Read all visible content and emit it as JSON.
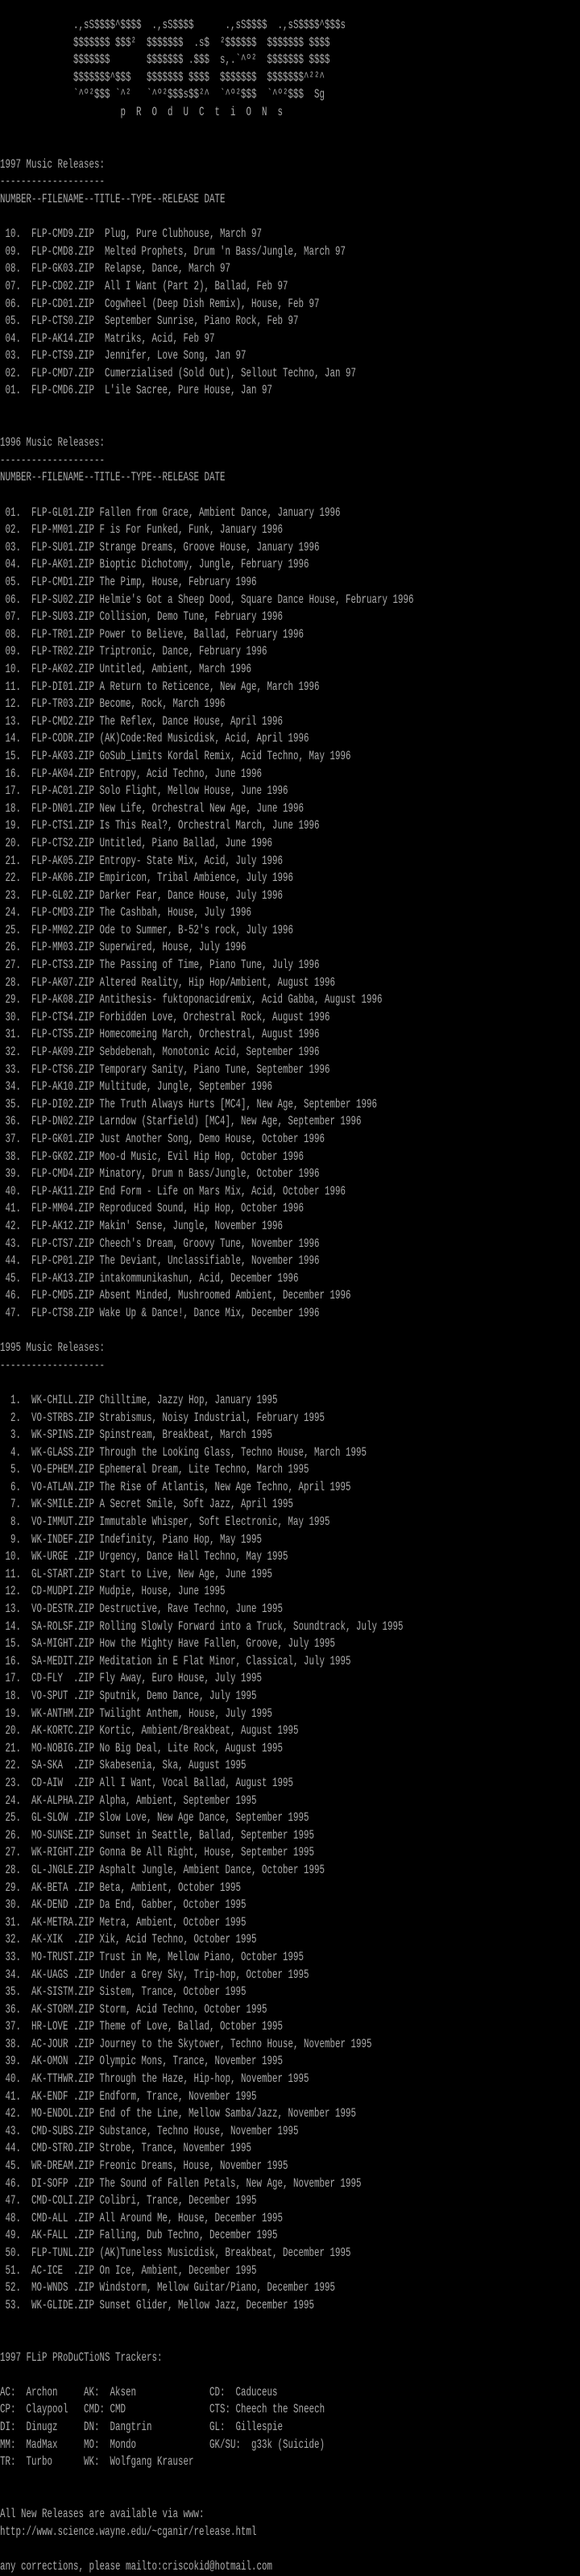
{
  "colors": {
    "background": "#000000",
    "text": "#aaaaaa"
  },
  "logo": {
    "art": [
      "              .,sS$$$$^$$$$  .,sS$$$$      .,sS$$$$  .,sS$$$$^$$$s",
      "              $$$$$$$ $$$²  $$$$$$$  .s$  ²$$$$$$  $$$$$$$ $$$$",
      "              $$$$$$$       $$$$$$$ .$$$  s,.`^º²  $$$$$$$ $$$$",
      "              $$$$$$$^$$$   $$$$$$$ $$$$  $$$$$$$  $$$$$$$^²²^",
      "              `^º²$$$ `^²   `^º²$$$s$$²^  `^º²$$$  `^º²$$$  Sg"
    ],
    "tagline": "                       p  R  O  d  U  C  t  i  O  N  s"
  },
  "sections": [
    {
      "title": "1997 Music Releases:",
      "rule": "--------------------",
      "header": "NUMBER--FILENAME--TITLE--TYPE--RELEASE DATE",
      "gap": 2,
      "entries": [
        {
          "number": "10",
          "filename": "FLP-CMD9.ZIP",
          "description": "Plug, Pure Clubhouse, March 97"
        },
        {
          "number": "09",
          "filename": "FLP-CMD8.ZIP",
          "description": "Melted Prophets, Drum 'n Bass/Jungle, March 97"
        },
        {
          "number": "08",
          "filename": "FLP-GK03.ZIP",
          "description": "Relapse, Dance, March 97"
        },
        {
          "number": "07",
          "filename": "FLP-CD02.ZIP",
          "description": "All I Want (Part 2), Ballad, Feb 97"
        },
        {
          "number": "06",
          "filename": "FLP-CD01.ZIP",
          "description": "Cogwheel (Deep Dish Remix), House, Feb 97"
        },
        {
          "number": "05",
          "filename": "FLP-CTS0.ZIP",
          "description": "September Sunrise, Piano Rock, Feb 97"
        },
        {
          "number": "04",
          "filename": "FLP-AK14.ZIP",
          "description": "Matriks, Acid, Feb 97"
        },
        {
          "number": "03",
          "filename": "FLP-CTS9.ZIP",
          "description": "Jennifer, Love Song, Jan 97"
        },
        {
          "number": "02",
          "filename": "FLP-CMD7.ZIP",
          "description": "Cumerzialised (Sold Out), Sellout Techno, Jan 97"
        },
        {
          "number": "01",
          "filename": "FLP-CMD6.ZIP",
          "description": "L'ile Sacree, Pure House, Jan 97"
        }
      ]
    },
    {
      "title": "1996 Music Releases:",
      "rule": "--------------------",
      "header": "NUMBER--FILENAME--TITLE--TYPE--RELEASE DATE",
      "gap": 1,
      "entries": [
        {
          "number": "01",
          "filename": "FLP-GL01.ZIP",
          "description": "Fallen from Grace, Ambient Dance, January 1996"
        },
        {
          "number": "02",
          "filename": "FLP-MM01.ZIP",
          "description": "F is For Funked, Funk, January 1996"
        },
        {
          "number": "03",
          "filename": "FLP-SU01.ZIP",
          "description": "Strange Dreams, Groove House, January 1996"
        },
        {
          "number": "04",
          "filename": "FLP-AK01.ZIP",
          "description": "Bioptic Dichotomy, Jungle, February 1996"
        },
        {
          "number": "05",
          "filename": "FLP-CMD1.ZIP",
          "description": "The Pimp, House, February 1996"
        },
        {
          "number": "06",
          "filename": "FLP-SU02.ZIP",
          "description": "Helmie's Got a Sheep Dood, Square Dance House, February 1996"
        },
        {
          "number": "07",
          "filename": "FLP-SU03.ZIP",
          "description": "Collision, Demo Tune, February 1996"
        },
        {
          "number": "08",
          "filename": "FLP-TR01.ZIP",
          "description": "Power to Believe, Ballad, February 1996"
        },
        {
          "number": "09",
          "filename": "FLP-TR02.ZIP",
          "description": "Triptronic, Dance, February 1996"
        },
        {
          "number": "10",
          "filename": "FLP-AK02.ZIP",
          "description": "Untitled, Ambient, March 1996"
        },
        {
          "number": "11",
          "filename": "FLP-DI01.ZIP",
          "description": "A Return to Reticence, New Age, March 1996"
        },
        {
          "number": "12",
          "filename": "FLP-TR03.ZIP",
          "description": "Become, Rock, March 1996"
        },
        {
          "number": "13",
          "filename": "FLP-CMD2.ZIP",
          "description": "The Reflex, Dance House, April 1996"
        },
        {
          "number": "14",
          "filename": "FLP-CODR.ZIP",
          "description": "(AK)Code:Red Musicdisk, Acid, April 1996"
        },
        {
          "number": "15",
          "filename": "FLP-AK03.ZIP",
          "description": "GoSub_Limits Kordal Remix, Acid Techno, May 1996"
        },
        {
          "number": "16",
          "filename": "FLP-AK04.ZIP",
          "description": "Entropy, Acid Techno, June 1996"
        },
        {
          "number": "17",
          "filename": "FLP-AC01.ZIP",
          "description": "Solo Flight, Mellow House, June 1996"
        },
        {
          "number": "18",
          "filename": "FLP-DN01.ZIP",
          "description": "New Life, Orchestral New Age, June 1996"
        },
        {
          "number": "19",
          "filename": "FLP-CTS1.ZIP",
          "description": "Is This Real?, Orchestral March, June 1996"
        },
        {
          "number": "20",
          "filename": "FLP-CTS2.ZIP",
          "description": "Untitled, Piano Ballad, June 1996"
        },
        {
          "number": "21",
          "filename": "FLP-AK05.ZIP",
          "description": "Entropy- State Mix, Acid, July 1996"
        },
        {
          "number": "22",
          "filename": "FLP-AK06.ZIP",
          "description": "Empiricon, Tribal Ambience, July 1996"
        },
        {
          "number": "23",
          "filename": "FLP-GL02.ZIP",
          "description": "Darker Fear, Dance House, July 1996"
        },
        {
          "number": "24",
          "filename": "FLP-CMD3.ZIP",
          "description": "The Cashbah, House, July 1996"
        },
        {
          "number": "25",
          "filename": "FLP-MM02.ZIP",
          "description": "Ode to Summer, B-52's rock, July 1996"
        },
        {
          "number": "26",
          "filename": "FLP-MM03.ZIP",
          "description": "Superwired, House, July 1996"
        },
        {
          "number": "27",
          "filename": "FLP-CTS3.ZIP",
          "description": "The Passing of Time, Piano Tune, July 1996"
        },
        {
          "number": "28",
          "filename": "FLP-AK07.ZIP",
          "description": "Altered Reality, Hip Hop/Ambient, August 1996"
        },
        {
          "number": "29",
          "filename": "FLP-AK08.ZIP",
          "description": "Antithesis- fuktoponacidremix, Acid Gabba, August 1996"
        },
        {
          "number": "30",
          "filename": "FLP-CTS4.ZIP",
          "description": "Forbidden Love, Orchestral Rock, August 1996"
        },
        {
          "number": "31",
          "filename": "FLP-CTS5.ZIP",
          "description": "Homecomeing March, Orchestral, August 1996"
        },
        {
          "number": "32",
          "filename": "FLP-AK09.ZIP",
          "description": "Sebdebenah, Monotonic Acid, September 1996"
        },
        {
          "number": "33",
          "filename": "FLP-CTS6.ZIP",
          "description": "Temporary Sanity, Piano Tune, September 1996"
        },
        {
          "number": "34",
          "filename": "FLP-AK10.ZIP",
          "description": "Multitude, Jungle, September 1996"
        },
        {
          "number": "35",
          "filename": "FLP-DI02.ZIP",
          "description": "The Truth Always Hurts [MC4], New Age, September 1996"
        },
        {
          "number": "36",
          "filename": "FLP-DN02.ZIP",
          "description": "Larndow (Starfield) [MC4], New Age, September 1996"
        },
        {
          "number": "37",
          "filename": "FLP-GK01.ZIP",
          "description": "Just Another Song, Demo House, October 1996"
        },
        {
          "number": "38",
          "filename": "FLP-GK02.ZIP",
          "description": "Moo-d Music, Evil Hip Hop, October 1996"
        },
        {
          "number": "39",
          "filename": "FLP-CMD4.ZIP",
          "description": "Minatory, Drum n Bass/Jungle, October 1996"
        },
        {
          "number": "40",
          "filename": "FLP-AK11.ZIP",
          "description": "End Form - Life on Mars Mix, Acid, October 1996"
        },
        {
          "number": "41",
          "filename": "FLP-MM04.ZIP",
          "description": "Reproduced Sound, Hip Hop, October 1996"
        },
        {
          "number": "42",
          "filename": "FLP-AK12.ZIP",
          "description": "Makin' Sense, Jungle, November 1996"
        },
        {
          "number": "43",
          "filename": "FLP-CTS7.ZIP",
          "description": "Cheech's Dream, Groovy Tune, November 1996"
        },
        {
          "number": "44",
          "filename": "FLP-CP01.ZIP",
          "description": "The Deviant, Unclassifiable, November 1996"
        },
        {
          "number": "45",
          "filename": "FLP-AK13.ZIP",
          "description": "intakommunikashun, Acid, December 1996"
        },
        {
          "number": "46",
          "filename": "FLP-CMD5.ZIP",
          "description": "Absent Minded, Mushroomed Ambient, December 1996"
        },
        {
          "number": "47",
          "filename": "FLP-CTS8.ZIP",
          "description": "Wake Up & Dance!, Dance Mix, December 1996"
        }
      ]
    },
    {
      "title": "1995 Music Releases:",
      "rule": "--------------------",
      "gap": 1,
      "entries": [
        {
          "number": "1",
          "filename": "WK-CHILL.ZIP",
          "description": "Chilltime, Jazzy Hop, January 1995"
        },
        {
          "number": "2",
          "filename": "VO-STRBS.ZIP",
          "description": "Strabismus, Noisy Industrial, February 1995"
        },
        {
          "number": "3",
          "filename": "WK-SPINS.ZIP",
          "description": "Spinstream, Breakbeat, March 1995"
        },
        {
          "number": "4",
          "filename": "WK-GLASS.ZIP",
          "description": "Through the Looking Glass, Techno House, March 1995"
        },
        {
          "number": "5",
          "filename": "VO-EPHEM.ZIP",
          "description": "Ephemeral Dream, Lite Techno, March 1995"
        },
        {
          "number": "6",
          "filename": "VO-ATLAN.ZIP",
          "description": "The Rise of Atlantis, New Age Techno, April 1995"
        },
        {
          "number": "7",
          "filename": "WK-SMILE.ZIP",
          "description": "A Secret Smile, Soft Jazz, April 1995"
        },
        {
          "number": "8",
          "filename": "VO-IMMUT.ZIP",
          "description": "Immutable Whisper, Soft Electronic, May 1995"
        },
        {
          "number": "9",
          "filename": "WK-INDEF.ZIP",
          "description": "Indefinity, Piano Hop, May 1995"
        },
        {
          "number": "10",
          "filename": "WK-URGE .ZIP",
          "description": "Urgency, Dance Hall Techno, May 1995"
        },
        {
          "number": "11",
          "filename": "GL-START.ZIP",
          "description": "Start to Live, New Age, June 1995"
        },
        {
          "number": "12",
          "filename": "CD-MUDPI.ZIP",
          "description": "Mudpie, House, June 1995"
        },
        {
          "number": "13",
          "filename": "VO-DESTR.ZIP",
          "description": "Destructive, Rave Techno, June 1995"
        },
        {
          "number": "14",
          "filename": "SA-ROLSF.ZIP",
          "description": "Rolling Slowly Forward into a Truck, Soundtrack, July 1995"
        },
        {
          "number": "15",
          "filename": "SA-MIGHT.ZIP",
          "description": "How the Mighty Have Fallen, Groove, July 1995"
        },
        {
          "number": "16",
          "filename": "SA-MEDIT.ZIP",
          "description": "Meditation in E Flat Minor, Classical, July 1995"
        },
        {
          "number": "17",
          "filename": "CD-FLY  .ZIP",
          "description": "Fly Away, Euro House, July 1995"
        },
        {
          "number": "18",
          "filename": "VO-SPUT .ZIP",
          "description": "Sputnik, Demo Dance, July 1995"
        },
        {
          "number": "19",
          "filename": "WK-ANTHM.ZIP",
          "description": "Twilight Anthem, House, July 1995"
        },
        {
          "number": "20",
          "filename": "AK-KORTC.ZIP",
          "description": "Kortic, Ambient/Breakbeat, August 1995"
        },
        {
          "number": "21",
          "filename": "MO-NOBIG.ZIP",
          "description": "No Big Deal, Lite Rock, August 1995"
        },
        {
          "number": "22",
          "filename": "SA-SKA  .ZIP",
          "description": "Skabesenia, Ska, August 1995"
        },
        {
          "number": "23",
          "filename": "CD-AIW  .ZIP",
          "description": "All I Want, Vocal Ballad, August 1995"
        },
        {
          "number": "24",
          "filename": "AK-ALPHA.ZIP",
          "description": "Alpha, Ambient, September 1995"
        },
        {
          "number": "25",
          "filename": "GL-SLOW .ZIP",
          "description": "Slow Love, New Age Dance, September 1995"
        },
        {
          "number": "26",
          "filename": "MO-SUNSE.ZIP",
          "description": "Sunset in Seattle, Ballad, September 1995"
        },
        {
          "number": "27",
          "filename": "WK-RIGHT.ZIP",
          "description": "Gonna Be All Right, House, September 1995"
        },
        {
          "number": "28",
          "filename": "GL-JNGLE.ZIP",
          "description": "Asphalt Jungle, Ambient Dance, October 1995"
        },
        {
          "number": "29",
          "filename": "AK-BETA .ZIP",
          "description": "Beta, Ambient, October 1995"
        },
        {
          "number": "30",
          "filename": "AK-DEND .ZIP",
          "description": "Da End, Gabber, October 1995"
        },
        {
          "number": "31",
          "filename": "AK-METRA.ZIP",
          "description": "Metra, Ambient, October 1995"
        },
        {
          "number": "32",
          "filename": "AK-XIK  .ZIP",
          "description": "Xik, Acid Techno, October 1995"
        },
        {
          "number": "33",
          "filename": "MO-TRUST.ZIP",
          "description": "Trust in Me, Mellow Piano, October 1995"
        },
        {
          "number": "34",
          "filename": "AK-UAGS .ZIP",
          "description": "Under a Grey Sky, Trip-hop, October 1995"
        },
        {
          "number": "35",
          "filename": "AK-SISTM.ZIP",
          "description": "Sistem, Trance, October 1995"
        },
        {
          "number": "36",
          "filename": "AK-STORM.ZIP",
          "description": "Storm, Acid Techno, October 1995"
        },
        {
          "number": "37",
          "filename": "HR-LOVE .ZIP",
          "description": "Theme of Love, Ballad, October 1995"
        },
        {
          "number": "38",
          "filename": "AC-JOUR .ZIP",
          "description": "Journey to the Skytower, Techno House, November 1995"
        },
        {
          "number": "39",
          "filename": "AK-OMON .ZIP",
          "description": "Olympic Mons, Trance, November 1995"
        },
        {
          "number": "40",
          "filename": "AK-TTHWR.ZIP",
          "description": "Through the Haze, Hip-hop, November 1995"
        },
        {
          "number": "41",
          "filename": "AK-ENDF .ZIP",
          "description": "Endform, Trance, November 1995"
        },
        {
          "number": "42",
          "filename": "MO-ENDOL.ZIP",
          "description": "End of the Line, Mellow Samba/Jazz, November 1995"
        },
        {
          "number": "43",
          "filename": "CMD-SUBS.ZIP",
          "description": "Substance, Techno House, November 1995"
        },
        {
          "number": "44",
          "filename": "CMD-STRO.ZIP",
          "description": "Strobe, Trance, November 1995"
        },
        {
          "number": "45",
          "filename": "WR-DREAM.ZIP",
          "description": "Freonic Dreams, House, November 1995"
        },
        {
          "number": "46",
          "filename": "DI-SOFP .ZIP",
          "description": "The Sound of Fallen Petals, New Age, November 1995"
        },
        {
          "number": "47",
          "filename": "CMD-COLI.ZIP",
          "description": "Colibri, Trance, December 1995"
        },
        {
          "number": "48",
          "filename": "CMD-ALL .ZIP",
          "description": "All Around Me, House, December 1995"
        },
        {
          "number": "49",
          "filename": "AK-FALL .ZIP",
          "description": "Falling, Dub Techno, December 1995"
        },
        {
          "number": "50",
          "filename": "FLP-TUNL.ZIP",
          "description": "(AK)Tuneless Musicdisk, Breakbeat, December 1995"
        },
        {
          "number": "51",
          "filename": "AC-ICE  .ZIP",
          "description": "On Ice, Ambient, December 1995"
        },
        {
          "number": "52",
          "filename": "MO-WNDS .ZIP",
          "description": "Windstorm, Mellow Guitar/Piano, December 1995"
        },
        {
          "number": "53",
          "filename": "WK-GLIDE.ZIP",
          "description": "Sunset Glider, Mellow Jazz, December 1995"
        }
      ]
    }
  ],
  "trackers": {
    "title": "1997 FLiP PRoDuCTioNS Trackers:",
    "rows": [
      [
        {
          "code": "AC",
          "name": "Archon"
        },
        {
          "code": "AK",
          "name": "Aksen"
        },
        {
          "code": "CD",
          "name": "Caduceus"
        }
      ],
      [
        {
          "code": "CP",
          "name": "Claypool"
        },
        {
          "code": "CMD",
          "name": "CMD"
        },
        {
          "code": "CTS",
          "name": "Cheech the Sneech"
        }
      ],
      [
        {
          "code": "DI",
          "name": "Dinugz"
        },
        {
          "code": "DN",
          "name": "Dangtrin"
        },
        {
          "code": "GL",
          "name": "Gillespie"
        }
      ],
      [
        {
          "code": "MM",
          "name": "MadMax"
        },
        {
          "code": "MO",
          "name": "Mondo"
        },
        {
          "code": "GK/SU",
          "name": "g33k (Suicide)"
        }
      ],
      [
        {
          "code": "TR",
          "name": "Turbo"
        },
        {
          "code": "WK",
          "name": "Wolfgang Krauser"
        }
      ]
    ]
  },
  "footer": {
    "availability": "All New Releases are available via www:",
    "url": "http://www.science.wayne.edu/~cganir/release.html",
    "corrections_prefix": "any corrections, please ",
    "corrections_link": "mailto:criscokid@hotmail.com"
  }
}
